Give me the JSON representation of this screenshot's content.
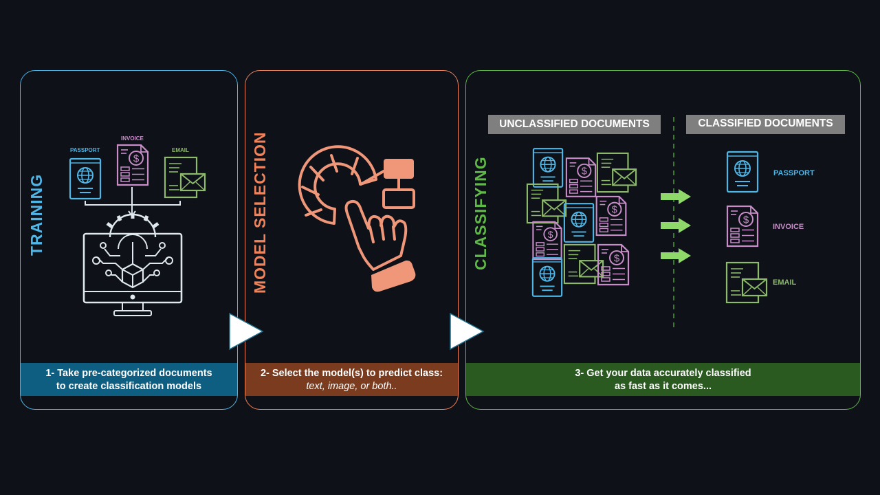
{
  "colors": {
    "training": "#4fb6e8",
    "selection": "#f0835a",
    "classifying": "#5fb947",
    "invoice": "#c98ec9",
    "email": "#8dbb6b"
  },
  "training": {
    "title": "TRAINING",
    "labels": {
      "passport": "PASSPORT",
      "invoice": "INVOICE",
      "email": "EMAIL"
    },
    "caption_line1": "1- Take pre-categorized documents",
    "caption_line2": "to create classification models"
  },
  "selection": {
    "title": "MODEL SELECTION",
    "caption_line1": "2- Select the model(s) to predict class:",
    "caption_line2": "text, image, or both.."
  },
  "classifying": {
    "title": "CLASSIFYING",
    "unclassified_header": "UNCLASSIFIED DOCUMENTS",
    "classified_header": "CLASSIFIED DOCUMENTS",
    "classes": {
      "passport": "PASSPORT",
      "invoice": "INVOICE",
      "email": "EMAIL"
    },
    "caption_line1": "3- Get your data accurately classified",
    "caption_line2": "as fast as it comes..."
  }
}
